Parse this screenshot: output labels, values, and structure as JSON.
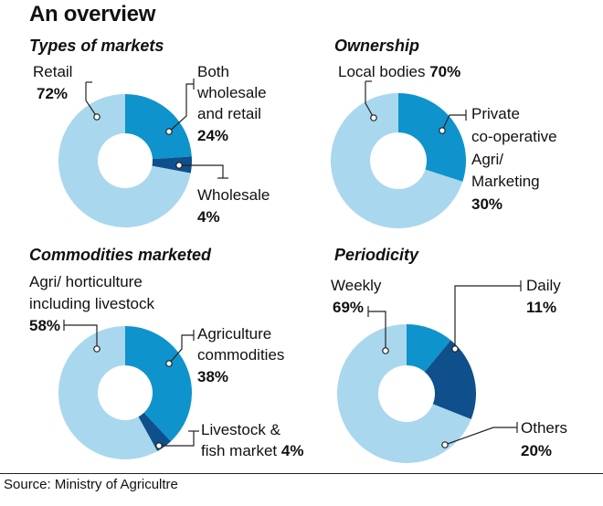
{
  "title": "An overview",
  "source": "Source: Ministry of Agricultre",
  "colors": {
    "light": "#a9d7ee",
    "medium": "#0f93cd",
    "dark": "#0f4f8c",
    "leader": "#222222"
  },
  "chart_data": [
    {
      "type": "pie",
      "title": "Types of markets",
      "slices": [
        {
          "label": "Both wholesale and retail",
          "value": 24,
          "value_text": "24%",
          "color": "medium"
        },
        {
          "label": "Wholesale",
          "value": 4,
          "value_text": "4%",
          "color": "dark"
        },
        {
          "label": "Retail",
          "value": 72,
          "value_text": "72%",
          "color": "light"
        }
      ]
    },
    {
      "type": "pie",
      "title": "Ownership",
      "slices": [
        {
          "label": "Private co-operative Agri/ Marketing",
          "value": 30,
          "value_text": "30%",
          "color": "medium"
        },
        {
          "label": "Local bodies",
          "value": 70,
          "value_text": "70%",
          "color": "light"
        }
      ]
    },
    {
      "type": "pie",
      "title": "Commodities marketed",
      "slices": [
        {
          "label": "Agriculture commodities",
          "value": 38,
          "value_text": "38%",
          "color": "medium"
        },
        {
          "label": "Livestock & fish market",
          "value": 4,
          "value_text": "4%",
          "color": "dark"
        },
        {
          "label": "Agri/ horticulture including livestock",
          "value": 58,
          "value_text": "58%",
          "color": "light"
        }
      ]
    },
    {
      "type": "pie",
      "title": "Periodicity",
      "slices": [
        {
          "label": "Daily",
          "value": 11,
          "value_text": "11%",
          "color": "medium"
        },
        {
          "label": "Others",
          "value": 20,
          "value_text": "20%",
          "color": "dark"
        },
        {
          "label": "Weekly",
          "value": 69,
          "value_text": "69%",
          "color": "light"
        }
      ]
    }
  ],
  "labels": {
    "c0": {
      "retail_a": "Retail",
      "retail_b": "72%",
      "both_a": "Both",
      "both_b": "wholesale",
      "both_c": "and retail",
      "both_d": "24%",
      "whole_a": "Wholesale",
      "whole_b": "4%"
    },
    "c1": {
      "local_a": "Local bodies",
      "local_b": "70%",
      "priv_a": "Private",
      "priv_b": "co-operative",
      "priv_c": "Agri/",
      "priv_d": "Marketing",
      "priv_e": "30%"
    },
    "c2": {
      "agri_a": "Agri/ horticulture",
      "agri_b": "including livestock",
      "agri_c": "58%",
      "comm_a": "Agriculture",
      "comm_b": "commodities",
      "comm_c": "38%",
      "live_a": "Livestock &",
      "live_b": "fish market",
      "live_c": "4%"
    },
    "c3": {
      "weekly_a": "Weekly",
      "weekly_b": "69%",
      "daily_a": "Daily",
      "daily_b": "11%",
      "others_a": "Others",
      "others_b": "20%"
    }
  }
}
